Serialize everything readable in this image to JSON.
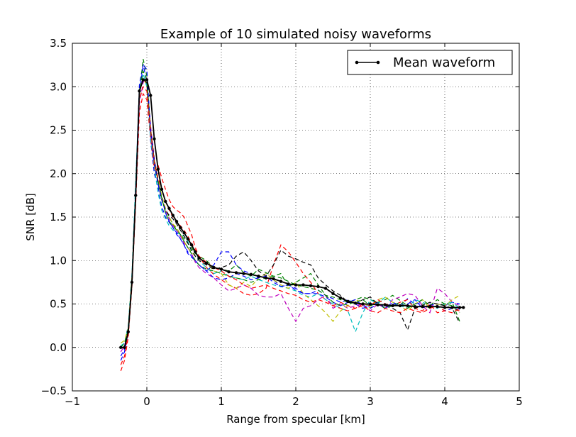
{
  "chart_data": {
    "type": "line",
    "title": "Example of 10 simulated noisy waveforms",
    "xlabel": "Range from specular [km]",
    "ylabel": "SNR [dB]",
    "xlim": [
      -1,
      5
    ],
    "ylim": [
      -0.5,
      3.5
    ],
    "xticks": [
      -1,
      0,
      1,
      2,
      3,
      4,
      5
    ],
    "xtick_labels": [
      "−1",
      "0",
      "1",
      "2",
      "3",
      "4",
      "5"
    ],
    "yticks": [
      -0.5,
      0.0,
      0.5,
      1.0,
      1.5,
      2.0,
      2.5,
      3.0,
      3.5
    ],
    "ytick_labels": [
      "−0.5",
      "0.0",
      "0.5",
      "1.0",
      "1.5",
      "2.0",
      "2.5",
      "3.0",
      "3.5"
    ],
    "grid": true,
    "legend": {
      "placement": "top-right",
      "entries": [
        "Mean waveform"
      ]
    },
    "mean_series": {
      "name": "Mean waveform",
      "color": "#000000",
      "x": [
        -0.35,
        -0.3,
        -0.25,
        -0.2,
        -0.15,
        -0.1,
        -0.05,
        0.0,
        0.05,
        0.1,
        0.15,
        0.2,
        0.25,
        0.3,
        0.35,
        0.4,
        0.45,
        0.5,
        0.55,
        0.6,
        0.65,
        0.7,
        0.8,
        0.9,
        1.0,
        1.1,
        1.2,
        1.3,
        1.4,
        1.5,
        1.6,
        1.7,
        1.8,
        1.9,
        2.0,
        2.1,
        2.2,
        2.3,
        2.4,
        2.5,
        2.6,
        2.7,
        2.8,
        2.9,
        3.0,
        3.1,
        3.2,
        3.3,
        3.4,
        3.5,
        3.6,
        3.7,
        3.8,
        3.9,
        4.0,
        4.1,
        4.2,
        4.25
      ],
      "y": [
        0.0,
        0.0,
        0.18,
        0.75,
        1.75,
        2.95,
        3.08,
        3.08,
        2.9,
        2.4,
        2.05,
        1.82,
        1.68,
        1.6,
        1.52,
        1.45,
        1.38,
        1.32,
        1.25,
        1.18,
        1.1,
        1.03,
        0.97,
        0.92,
        0.9,
        0.87,
        0.86,
        0.85,
        0.84,
        0.82,
        0.8,
        0.79,
        0.76,
        0.73,
        0.72,
        0.72,
        0.71,
        0.7,
        0.68,
        0.62,
        0.57,
        0.53,
        0.51,
        0.5,
        0.5,
        0.49,
        0.49,
        0.48,
        0.48,
        0.48,
        0.47,
        0.47,
        0.47,
        0.47,
        0.46,
        0.46,
        0.46,
        0.46
      ]
    },
    "noisy_series": [
      {
        "color": "#0000ff",
        "y": [
          -0.1,
          -0.02,
          0.2,
          0.8,
          1.85,
          3.02,
          3.26,
          3.05,
          2.38,
          2.0,
          1.85,
          1.62,
          1.5,
          1.44,
          1.38,
          1.3,
          1.25,
          1.18,
          1.08,
          1.04,
          1.0,
          0.95,
          0.88,
          0.95,
          1.1,
          1.1,
          0.95,
          0.88,
          0.85,
          0.8,
          0.85,
          0.78,
          0.7,
          0.72,
          0.66,
          0.62,
          0.62,
          0.66,
          0.6,
          0.56,
          0.52,
          0.55,
          0.5,
          0.45,
          0.48,
          0.52,
          0.45,
          0.5,
          0.48,
          0.56,
          0.5,
          0.52,
          0.48,
          0.5,
          0.48,
          0.52,
          0.5
        ]
      },
      {
        "color": "#008000",
        "y": [
          0.0,
          0.05,
          0.15,
          0.72,
          1.7,
          2.9,
          3.32,
          3.12,
          2.45,
          2.1,
          1.88,
          1.7,
          1.58,
          1.5,
          1.42,
          1.35,
          1.3,
          1.25,
          1.2,
          1.15,
          1.08,
          1.05,
          1.0,
          0.92,
          0.9,
          0.88,
          0.95,
          0.86,
          0.82,
          0.9,
          0.86,
          0.82,
          0.8,
          0.76,
          0.72,
          0.7,
          0.68,
          0.66,
          0.6,
          0.58,
          0.55,
          0.52,
          0.55,
          0.58,
          0.55,
          0.52,
          0.55,
          0.6,
          0.54,
          0.48,
          0.45,
          0.5,
          0.45,
          0.48,
          0.5,
          0.52,
          0.3
        ]
      },
      {
        "color": "#ff0000",
        "y": [
          -0.27,
          -0.15,
          0.12,
          0.7,
          1.65,
          2.7,
          2.92,
          2.85,
          2.4,
          2.05,
          2.1,
          1.95,
          1.82,
          1.7,
          1.62,
          1.58,
          1.55,
          1.5,
          1.4,
          1.3,
          1.15,
          1.05,
          0.92,
          0.84,
          0.78,
          0.72,
          0.68,
          0.62,
          0.6,
          0.62,
          0.68,
          0.95,
          1.18,
          1.1,
          0.98,
          0.85,
          0.75,
          0.62,
          0.55,
          0.48,
          0.52,
          0.48,
          0.45,
          0.5,
          0.48,
          0.55,
          0.5,
          0.48,
          0.52,
          0.55,
          0.45,
          0.42,
          0.5,
          0.4,
          0.42,
          0.45,
          0.42
        ]
      },
      {
        "color": "#00bfbf",
        "y": [
          0.02,
          0.05,
          0.25,
          0.85,
          1.92,
          2.98,
          3.15,
          3.0,
          2.4,
          2.08,
          1.78,
          1.58,
          1.48,
          1.4,
          1.35,
          1.32,
          1.3,
          1.28,
          1.22,
          1.1,
          1.05,
          1.0,
          0.92,
          0.85,
          0.88,
          0.82,
          0.8,
          0.78,
          0.82,
          0.78,
          0.75,
          0.72,
          0.7,
          0.68,
          0.65,
          0.6,
          0.58,
          0.62,
          0.55,
          0.5,
          0.45,
          0.42,
          0.18,
          0.4,
          0.55,
          0.5,
          0.58,
          0.52,
          0.48,
          0.45,
          0.55,
          0.52,
          0.48,
          0.45,
          0.5,
          0.52,
          0.45
        ]
      },
      {
        "color": "#bf00bf",
        "y": [
          -0.05,
          0.02,
          0.18,
          0.78,
          1.72,
          2.8,
          3.05,
          3.1,
          2.55,
          2.18,
          1.9,
          1.72,
          1.58,
          1.48,
          1.4,
          1.35,
          1.28,
          1.2,
          1.15,
          1.08,
          0.98,
          0.92,
          0.85,
          0.8,
          0.72,
          0.65,
          0.68,
          0.72,
          0.68,
          0.6,
          0.58,
          0.58,
          0.62,
          0.45,
          0.3,
          0.45,
          0.48,
          0.55,
          0.6,
          0.45,
          0.5,
          0.45,
          0.48,
          0.5,
          0.42,
          0.5,
          0.45,
          0.55,
          0.58,
          0.62,
          0.6,
          0.48,
          0.4,
          0.68,
          0.62,
          0.52,
          0.48
        ]
      },
      {
        "color": "#bfbf00",
        "y": [
          0.05,
          0.08,
          0.22,
          0.82,
          1.8,
          2.92,
          3.1,
          3.02,
          2.5,
          2.12,
          1.92,
          1.75,
          1.6,
          1.5,
          1.42,
          1.38,
          1.3,
          1.22,
          1.15,
          1.1,
          1.05,
          1.02,
          0.98,
          0.88,
          0.85,
          0.72,
          0.68,
          0.75,
          0.7,
          0.8,
          0.85,
          0.78,
          0.72,
          0.68,
          0.75,
          0.62,
          0.55,
          0.48,
          0.4,
          0.3,
          0.42,
          0.48,
          0.55,
          0.52,
          0.45,
          0.55,
          0.58,
          0.52,
          0.48,
          0.42,
          0.5,
          0.55,
          0.45,
          0.5,
          0.48,
          0.55,
          0.6
        ]
      },
      {
        "color": "#000000",
        "y": [
          0.0,
          0.0,
          0.2,
          0.76,
          1.76,
          2.96,
          3.1,
          3.04,
          2.5,
          2.15,
          1.9,
          1.7,
          1.58,
          1.52,
          1.48,
          1.42,
          1.35,
          1.28,
          1.2,
          1.12,
          1.05,
          1.0,
          0.95,
          0.9,
          0.92,
          0.95,
          1.05,
          1.1,
          1.0,
          0.88,
          0.82,
          0.95,
          1.12,
          1.05,
          1.02,
          0.98,
          0.95,
          0.8,
          0.72,
          0.65,
          0.6,
          0.52,
          0.5,
          0.55,
          0.58,
          0.5,
          0.48,
          0.45,
          0.4,
          0.2,
          0.45,
          0.48,
          0.52,
          0.5,
          0.48,
          0.45,
          0.28
        ]
      },
      {
        "color": "#0000ff",
        "y": [
          -0.15,
          -0.05,
          0.18,
          0.78,
          1.78,
          2.92,
          3.25,
          3.2,
          2.48,
          2.12,
          1.88,
          1.72,
          1.55,
          1.45,
          1.38,
          1.32,
          1.25,
          1.18,
          1.1,
          1.05,
          1.0,
          0.95,
          0.88,
          0.8,
          0.78,
          0.8,
          0.85,
          0.82,
          0.78,
          0.8,
          0.82,
          0.75,
          0.7,
          0.72,
          0.68,
          0.62,
          0.62,
          0.62,
          0.58,
          0.52,
          0.48,
          0.52,
          0.55,
          0.48,
          0.45,
          0.5,
          0.45,
          0.52,
          0.48,
          0.5,
          0.55,
          0.45,
          0.5,
          0.48,
          0.42,
          0.45,
          0.44
        ]
      },
      {
        "color": "#008000",
        "y": [
          0.0,
          0.05,
          0.2,
          0.78,
          1.78,
          2.95,
          3.18,
          3.08,
          2.52,
          2.15,
          1.92,
          1.72,
          1.55,
          1.45,
          1.4,
          1.35,
          1.3,
          1.22,
          1.15,
          1.08,
          1.0,
          0.95,
          0.9,
          0.88,
          0.85,
          0.82,
          0.8,
          0.78,
          0.75,
          0.78,
          0.8,
          0.82,
          0.85,
          0.7,
          0.75,
          0.8,
          0.85,
          0.72,
          0.6,
          0.52,
          0.48,
          0.5,
          0.52,
          0.55,
          0.48,
          0.5,
          0.45,
          0.48,
          0.52,
          0.45,
          0.5,
          0.55,
          0.48,
          0.55,
          0.5,
          0.48,
          0.4
        ]
      },
      {
        "color": "#ff0000",
        "y": [
          -0.2,
          -0.1,
          0.15,
          0.72,
          1.72,
          2.85,
          3.0,
          2.95,
          2.5,
          2.12,
          1.95,
          1.82,
          1.68,
          1.58,
          1.5,
          1.45,
          1.4,
          1.35,
          1.28,
          1.2,
          1.12,
          1.05,
          0.98,
          0.92,
          0.88,
          0.82,
          0.78,
          0.72,
          0.68,
          0.7,
          0.72,
          0.68,
          0.65,
          0.62,
          0.6,
          0.55,
          0.52,
          0.55,
          0.52,
          0.48,
          0.45,
          0.42,
          0.45,
          0.48,
          0.42,
          0.4,
          0.45,
          0.42,
          0.4,
          0.45,
          0.42,
          0.4,
          0.45,
          0.48,
          0.42,
          0.4,
          0.45
        ]
      }
    ]
  }
}
